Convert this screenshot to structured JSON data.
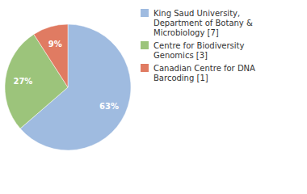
{
  "chart_data": {
    "type": "pie",
    "categories": [
      "King Saud University, Department of Botany & Microbiology [7]",
      "Centre for Biodiversity Genomics [3]",
      "Canadian Centre for DNA Barcoding [1]"
    ],
    "values": [
      63,
      27,
      9
    ],
    "value_labels": [
      "63%",
      "27%",
      "9%"
    ],
    "colors": [
      "#9fbbe0",
      "#9cc47b",
      "#e07b62"
    ],
    "data_labels": true,
    "legend": "top-right"
  }
}
